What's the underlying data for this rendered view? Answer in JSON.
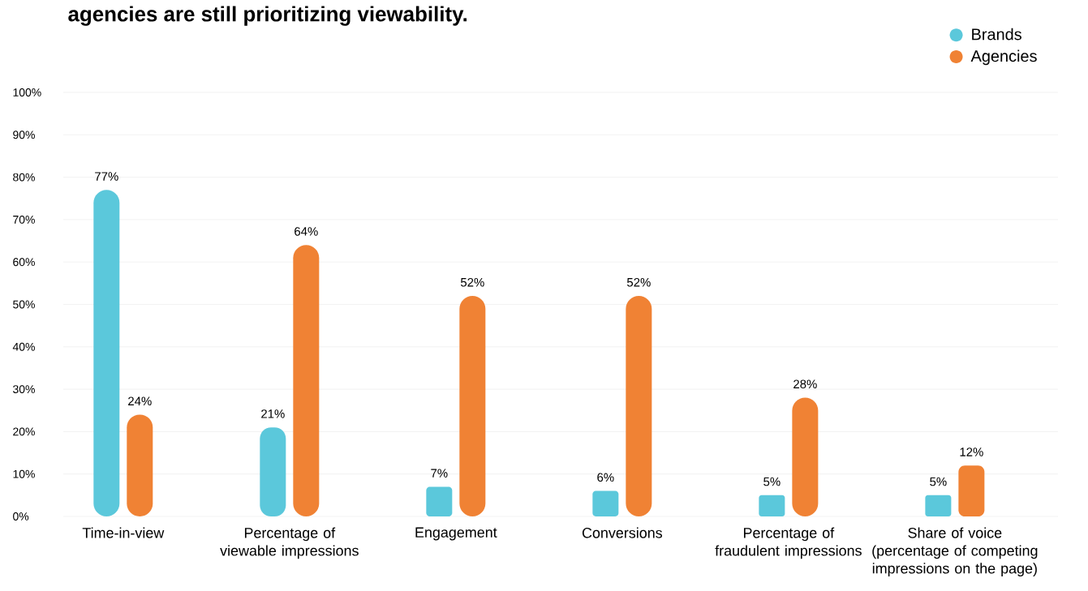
{
  "chart_data": {
    "type": "bar",
    "title": "agencies are still prioritizing viewability.",
    "categories": [
      "Time-in-view",
      "Percentage of viewable impressions",
      "Engagement",
      "Conversions",
      "Percentage of fraudulent impressions",
      "Share of voice (percentage of competing impressions on the page)"
    ],
    "series": [
      {
        "name": "Brands",
        "color": "#5bc8db",
        "values": [
          77,
          21,
          7,
          6,
          5,
          5
        ],
        "value_labels": [
          "77%",
          "21%",
          "7%",
          "6%",
          "5%",
          "5%"
        ]
      },
      {
        "name": "Agencies",
        "color": "#f08234",
        "values": [
          24,
          64,
          52,
          52,
          28,
          12
        ],
        "value_labels": [
          "24%",
          "64%",
          "52%",
          "52%",
          "28%",
          "12%"
        ]
      }
    ],
    "ylim": [
      0,
      100
    ],
    "yticks": [
      {
        "value": 0,
        "label": "0%"
      },
      {
        "value": 10,
        "label": "10%"
      },
      {
        "value": 20,
        "label": "20%"
      },
      {
        "value": 30,
        "label": "30%"
      },
      {
        "value": 40,
        "label": "40%"
      },
      {
        "value": 50,
        "label": "50%"
      },
      {
        "value": 60,
        "label": "60%"
      },
      {
        "value": 70,
        "label": "70%"
      },
      {
        "value": 80,
        "label": "80%"
      },
      {
        "value": 90,
        "label": "90%"
      },
      {
        "value": 100,
        "label": "100%"
      }
    ],
    "grid": "y",
    "legend": "top right"
  }
}
